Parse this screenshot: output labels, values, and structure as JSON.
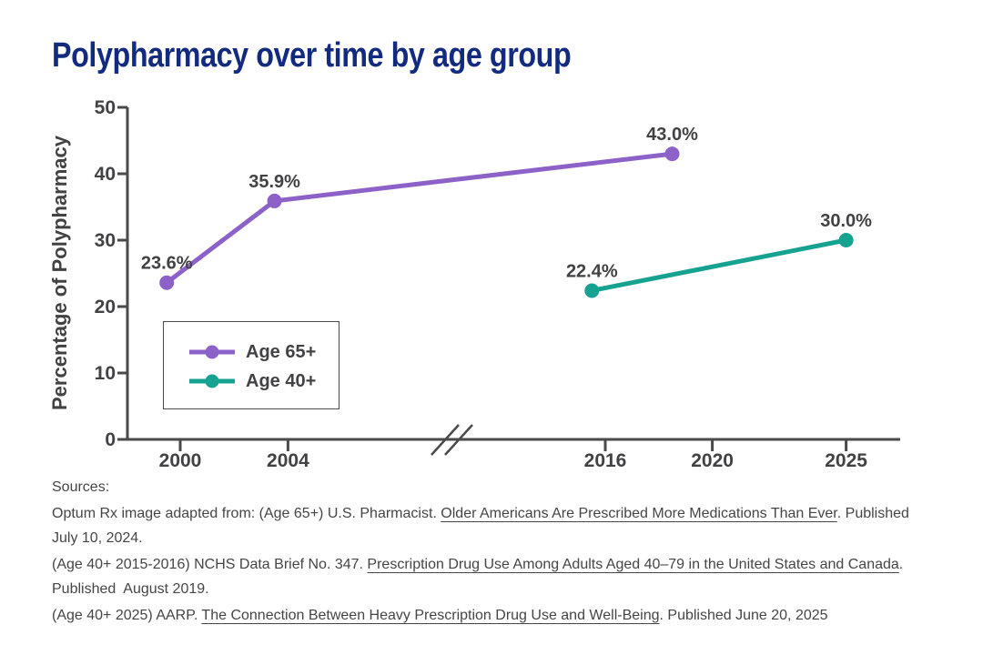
{
  "title": "Polypharmacy over time by age group",
  "colors": {
    "title": "#122b7e",
    "chart_text": "#424244",
    "axis": "#4a4a4b",
    "purple": "#8c62c9",
    "teal": "#16a290",
    "source_text": "#454545"
  },
  "chart_data": {
    "type": "line",
    "title": "Polypharmacy over time by age group",
    "xlabel": "",
    "ylabel": "Percentage of Polypharmacy",
    "ylim": [
      0,
      50
    ],
    "yticks": [
      0,
      10,
      20,
      30,
      40,
      50
    ],
    "x_axis": {
      "broken": true,
      "left_ticks": [
        2000,
        2004
      ],
      "right_ticks": [
        2016,
        2020,
        2025
      ]
    },
    "grid": false,
    "legend_position": "lower-left",
    "series": [
      {
        "name": "Age 65+",
        "color": "#8c62c9",
        "points": [
          {
            "year": 1999.5,
            "value": 23.6,
            "label": "23.6%"
          },
          {
            "year": 2003.5,
            "value": 35.9,
            "label": "35.9%"
          },
          {
            "year": 2018.5,
            "value": 43.0,
            "label": "43.0%"
          }
        ]
      },
      {
        "name": "Age 40+",
        "color": "#16a290",
        "points": [
          {
            "year": 2015.5,
            "value": 22.4,
            "label": "22.4%"
          },
          {
            "year": 2025,
            "value": 30.0,
            "label": "30.0%"
          }
        ]
      }
    ]
  },
  "sources": {
    "heading": "Sources:",
    "paragraphs": [
      {
        "segments": [
          {
            "text": "Optum Rx image adapted from: (Age 65+) U.S. Pharmacist. "
          },
          {
            "text": "Older Americans Are Prescribed More Medications Than Ever",
            "link": true
          },
          {
            "text": ". Published"
          },
          {
            "br": true
          },
          {
            "text": "July 10, 2024."
          }
        ]
      },
      {
        "segments": [
          {
            "text": "(Age 40+ 2015-2016) NCHS Data Brief No. 347. "
          },
          {
            "text": "Prescription Drug Use Among Adults Aged 40–79 in the United States and Canada",
            "link": true
          },
          {
            "text": "."
          },
          {
            "br": true
          },
          {
            "text": "Published  August 2019."
          }
        ]
      },
      {
        "segments": [
          {
            "text": "(Age 40+ 2025) AARP. "
          },
          {
            "text": "The Connection Between Heavy Prescription Drug Use and Well-Being",
            "link": true
          },
          {
            "text": ". Published June 20, 2025"
          }
        ]
      }
    ]
  }
}
